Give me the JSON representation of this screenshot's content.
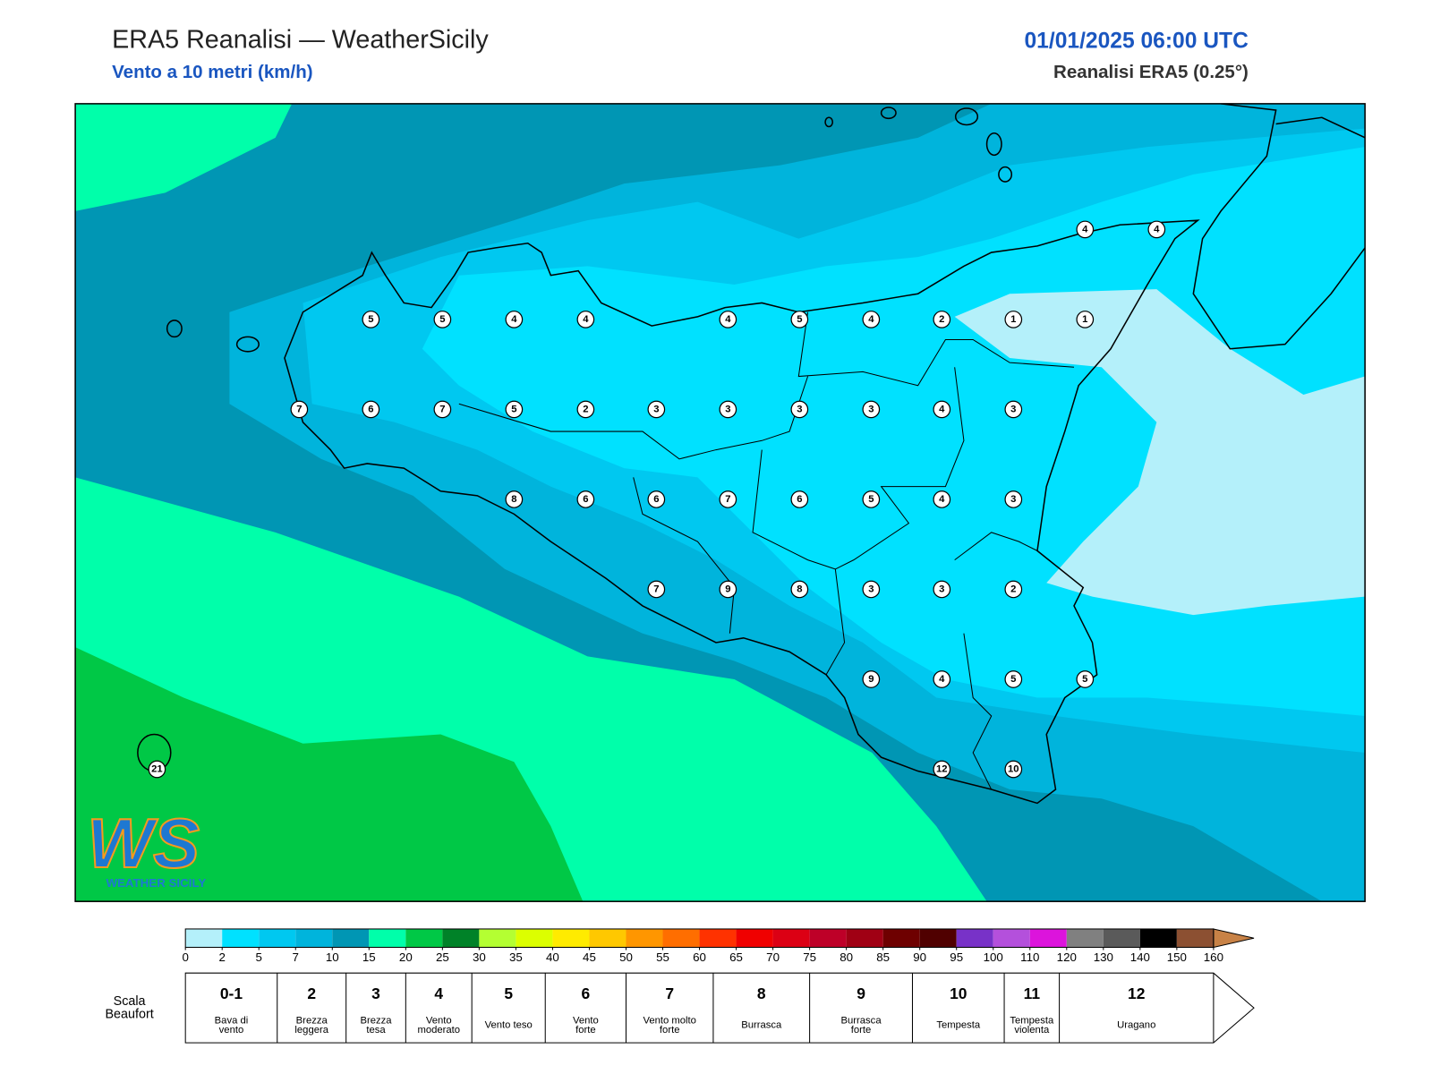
{
  "header": {
    "title": "ERA5 Reanalisi — WeatherSicily",
    "subtitle": "Vento a 10 metri (km/h)",
    "datetime": "01/01/2025 06:00 UTC",
    "source": "Reanalisi ERA5 (0.25°)"
  },
  "stations": [
    4,
    4,
    5,
    5,
    4,
    4,
    4,
    5,
    4,
    2,
    1,
    1,
    7,
    6,
    7,
    5,
    2,
    3,
    3,
    3,
    3,
    4,
    3,
    8,
    6,
    6,
    7,
    6,
    5,
    4,
    3,
    7,
    9,
    8,
    3,
    3,
    2,
    9,
    4,
    5,
    5,
    12,
    10,
    21
  ],
  "logo": {
    "mark": "WS",
    "name": "WEATHER SICILY"
  },
  "colorbar": {
    "ticks": [
      0,
      2,
      5,
      7,
      10,
      15,
      20,
      25,
      30,
      35,
      40,
      45,
      50,
      55,
      60,
      65,
      70,
      75,
      80,
      85,
      90,
      95,
      100,
      110,
      120,
      130,
      140,
      150,
      160
    ],
    "colors": [
      "#b4f0fa",
      "#00e1ff",
      "#00c8f0",
      "#00b4dc",
      "#0096b4",
      "#00ffaa",
      "#00c846",
      "#008228",
      "#b4ff32",
      "#dcff00",
      "#ffeb00",
      "#ffc800",
      "#ff9600",
      "#ff6e00",
      "#ff3200",
      "#f00000",
      "#dc0014",
      "#be0028",
      "#a00014",
      "#6e0000",
      "#500000",
      "#7832c8",
      "#b450dc",
      "#dc14dc",
      "#808080",
      "#5a5a5a",
      "#000000",
      "#8c5032",
      "#c88246"
    ]
  },
  "beaufort": {
    "heading": [
      "Scala",
      "Beaufort"
    ],
    "levels": [
      {
        "force": "0-1",
        "label": [
          "Bava di",
          "vento"
        ]
      },
      {
        "force": 2,
        "label": [
          "Brezza",
          "leggera"
        ]
      },
      {
        "force": 3,
        "label": [
          "Brezza",
          "tesa"
        ]
      },
      {
        "force": 4,
        "label": [
          "Vento",
          "moderato"
        ]
      },
      {
        "force": 5,
        "label": [
          "Vento teso"
        ]
      },
      {
        "force": 6,
        "label": [
          "Vento",
          "forte"
        ]
      },
      {
        "force": 7,
        "label": [
          "Vento molto",
          "forte"
        ]
      },
      {
        "force": 8,
        "label": [
          "Burrasca"
        ]
      },
      {
        "force": 9,
        "label": [
          "Burrasca",
          "forte"
        ]
      },
      {
        "force": 10,
        "label": [
          "Tempesta"
        ]
      },
      {
        "force": 11,
        "label": [
          "Tempesta",
          "violenta"
        ]
      },
      {
        "force": 12,
        "label": [
          "Uragano"
        ]
      }
    ]
  }
}
